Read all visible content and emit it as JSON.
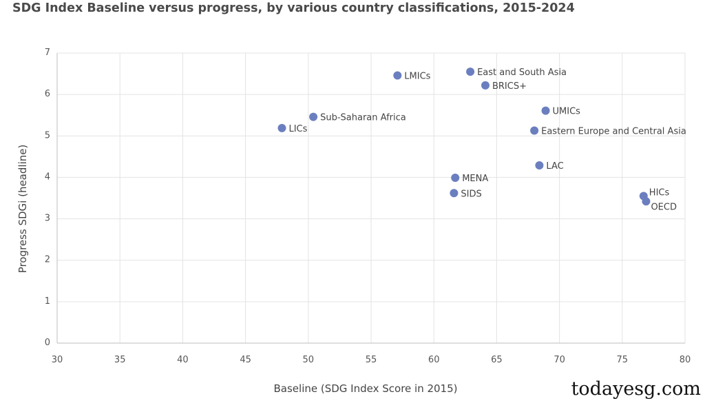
{
  "header": {
    "title": "SDG Index Baseline versus progress, by various country classifications, 2015-2024"
  },
  "watermark": "todayesg.com",
  "colors": {
    "point": "#6b7fbf",
    "grid": "#e3e3e3"
  },
  "chart_data": {
    "type": "scatter",
    "title": "SDG Index Baseline versus progress, by various country classifications, 2015-2024",
    "xlabel": "Baseline (SDG Index Score in 2015)",
    "ylabel": "Progress  SDGi (headline)",
    "xlim": [
      30,
      80
    ],
    "ylim": [
      0,
      7
    ],
    "xticks": [
      30,
      35,
      40,
      45,
      50,
      55,
      60,
      65,
      70,
      75,
      80
    ],
    "yticks": [
      0,
      1,
      2,
      3,
      4,
      5,
      6,
      7
    ],
    "grid": true,
    "points": [
      {
        "label": "LMICs",
        "x": 57.1,
        "y": 6.46
      },
      {
        "label": "East and South Asia",
        "x": 62.9,
        "y": 6.55
      },
      {
        "label": "BRICS+",
        "x": 64.1,
        "y": 6.22
      },
      {
        "label": "UMICs",
        "x": 68.9,
        "y": 5.61
      },
      {
        "label": "Eastern Europe and Central Asia",
        "x": 68.0,
        "y": 5.13
      },
      {
        "label": "Sub-Saharan Africa",
        "x": 50.4,
        "y": 5.46
      },
      {
        "label": "LICs",
        "x": 47.9,
        "y": 5.19
      },
      {
        "label": "LAC",
        "x": 68.4,
        "y": 4.29
      },
      {
        "label": "MENA",
        "x": 61.7,
        "y": 3.99
      },
      {
        "label": "SIDS",
        "x": 61.6,
        "y": 3.62
      },
      {
        "label": "HICs",
        "x": 76.7,
        "y": 3.55
      },
      {
        "label": "OECD",
        "x": 76.9,
        "y": 3.42
      }
    ]
  }
}
